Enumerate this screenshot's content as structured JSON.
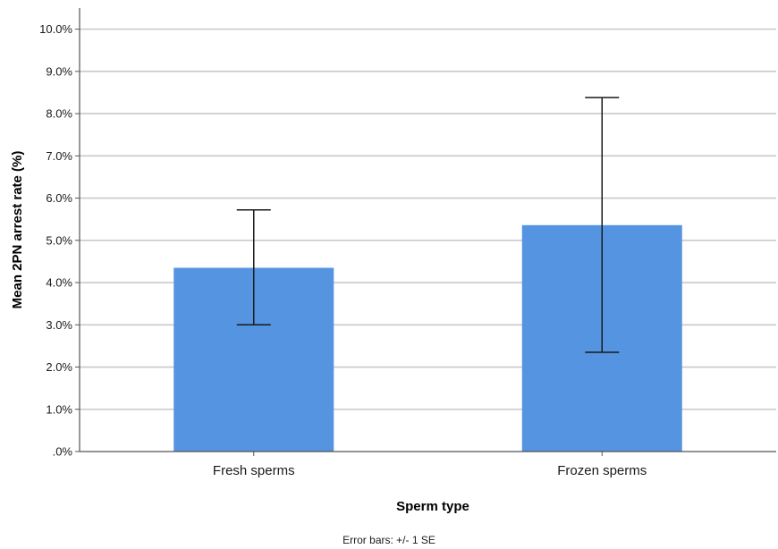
{
  "chart_data": {
    "type": "bar",
    "categories": [
      "Fresh sperms",
      "Frozen sperms"
    ],
    "values": [
      4.35,
      5.36
    ],
    "error_bars": {
      "lower": [
        3.0,
        2.35
      ],
      "upper": [
        5.72,
        8.38
      ]
    },
    "xlabel": "Sperm type",
    "ylabel": "Mean 2PN arrest rate (%)",
    "ylim": [
      0,
      10.5
    ],
    "yticks": [
      0,
      1,
      2,
      3,
      4,
      5,
      6,
      7,
      8,
      9,
      10
    ],
    "ytick_labels": [
      ".0%",
      "1.0%",
      "2.0%",
      "3.0%",
      "4.0%",
      "5.0%",
      "6.0%",
      "7.0%",
      "8.0%",
      "9.0%",
      "10.0%"
    ],
    "grid": true,
    "footnote": "Error bars: +/- 1 SE",
    "colors": {
      "bar": "#5594e0",
      "grid": "#c9c9c9",
      "axis": "#555555",
      "error_bar": "#1a1a1a"
    }
  }
}
